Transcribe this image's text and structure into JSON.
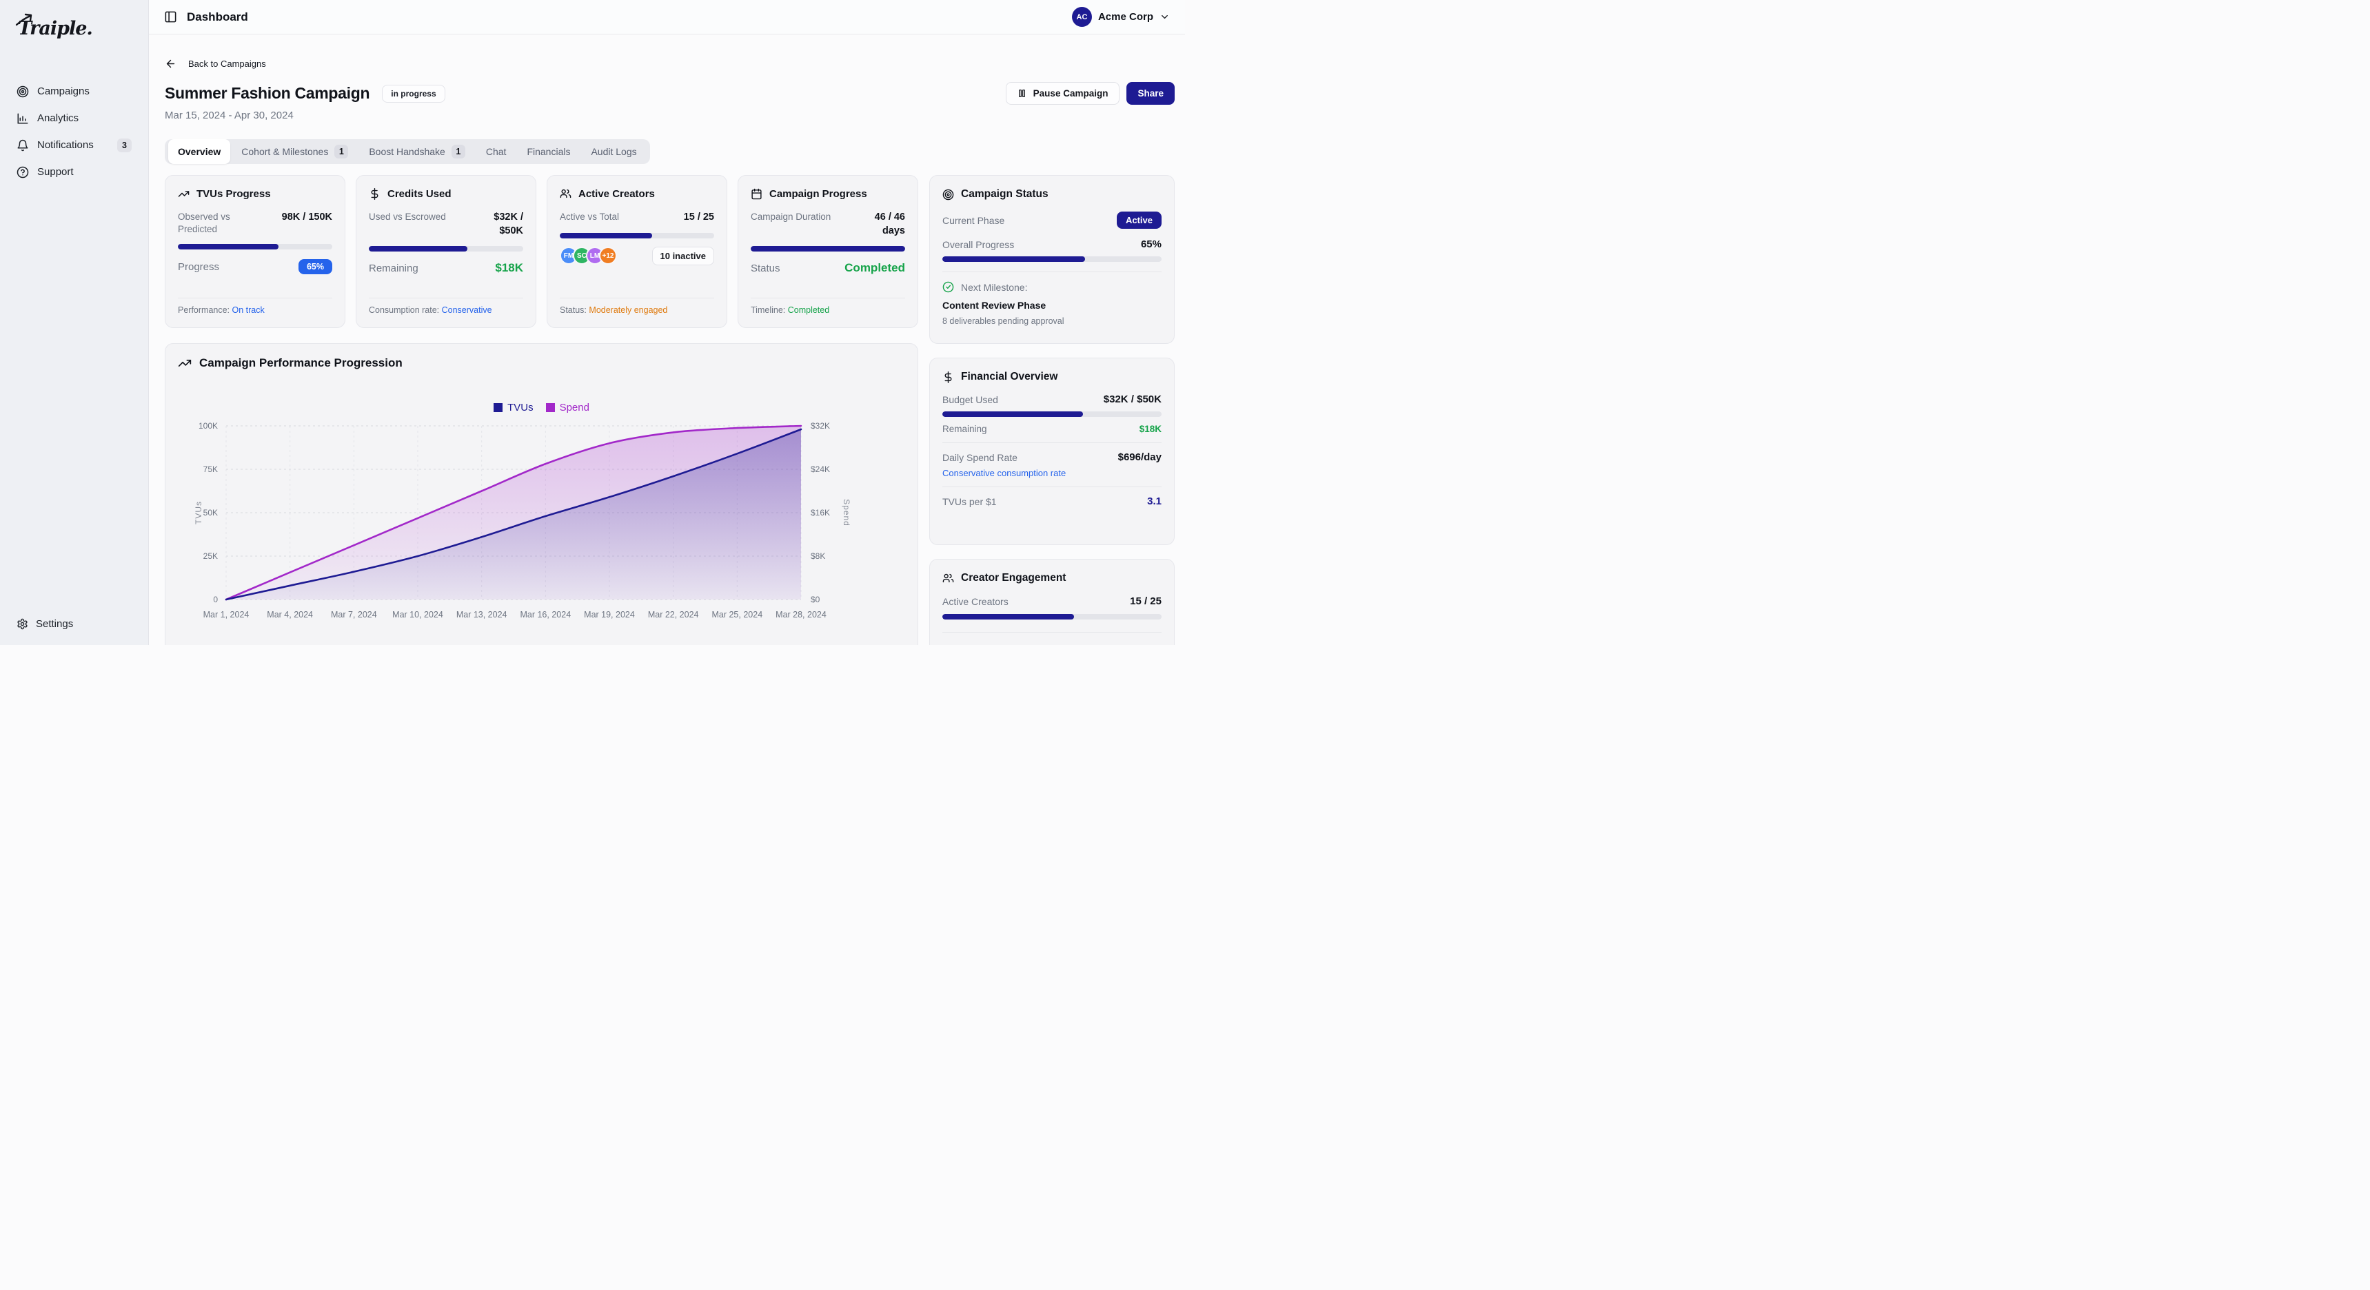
{
  "brand": {
    "logo_text": "Traiple."
  },
  "topbar": {
    "title": "Dashboard",
    "org_initials": "AC",
    "org_name": "Acme Corp"
  },
  "sidebar": {
    "items": [
      {
        "label": "Campaigns"
      },
      {
        "label": "Analytics"
      },
      {
        "label": "Notifications",
        "badge": "3"
      },
      {
        "label": "Support"
      }
    ],
    "settings_label": "Settings"
  },
  "page": {
    "back_label": "Back to Campaigns",
    "title": "Summer Fashion Campaign",
    "status_badge": "in progress",
    "date_range": "Mar 15, 2024 - Apr 30, 2024",
    "pause_button": "Pause Campaign",
    "share_button": "Share",
    "tabs": [
      {
        "label": "Overview"
      },
      {
        "label": "Cohort & Milestones",
        "badge": "1"
      },
      {
        "label": "Boost Handshake",
        "badge": "1"
      },
      {
        "label": "Chat"
      },
      {
        "label": "Financials"
      },
      {
        "label": "Audit Logs"
      }
    ]
  },
  "cards": {
    "tvus": {
      "title": "TVUs Progress",
      "metric_label": "Observed vs Predicted",
      "metric_value": "98K / 150K",
      "progress_pct": 65,
      "row2_label": "Progress",
      "row2_badge": "65%",
      "footer_label": "Performance:",
      "footer_value": "On track"
    },
    "credits": {
      "title": "Credits Used",
      "metric_label": "Used vs Escrowed",
      "metric_value": "$32K / $50K",
      "progress_pct": 64,
      "row2_label": "Remaining",
      "row2_value": "$18K",
      "footer_label": "Consumption rate:",
      "footer_value": "Conservative"
    },
    "creators": {
      "title": "Active Creators",
      "metric_label": "Active vs Total",
      "metric_value": "15 / 25",
      "progress_pct": 60,
      "avatars": [
        {
          "initials": "FM",
          "color": "#4b8df8"
        },
        {
          "initials": "SC",
          "color": "#2eb563"
        },
        {
          "initials": "LM",
          "color": "#b06cf0"
        },
        {
          "initials": "+12",
          "color": "#f07d22"
        }
      ],
      "inactive_badge": "10 inactive",
      "footer_label": "Status:",
      "footer_value": "Moderately engaged"
    },
    "duration": {
      "title": "Campaign Progress",
      "metric_label": "Campaign Duration",
      "metric_value": "46 / 46 days",
      "progress_pct": 100,
      "row2_label": "Status",
      "row2_value": "Completed",
      "footer_label": "Timeline:",
      "footer_value": "Completed"
    },
    "status": {
      "title": "Campaign Status",
      "phase_label": "Current Phase",
      "phase_badge": "Active",
      "progress_label": "Overall Progress",
      "progress_value": "65%",
      "progress_pct": 65,
      "milestone_label": "Next Milestone:",
      "milestone_title": "Content Review Phase",
      "milestone_note": "8 deliverables pending approval"
    },
    "financial": {
      "title": "Financial Overview",
      "budget_label": "Budget Used",
      "budget_value": "$32K / $50K",
      "progress_pct": 64,
      "remaining_label": "Remaining",
      "remaining_value": "$18K",
      "daily_label": "Daily Spend Rate",
      "daily_value": "$696/day",
      "daily_note": "Conservative consumption rate",
      "ratio_label": "TVUs per $1",
      "ratio_value": "3.1"
    },
    "engagement": {
      "title": "Creator Engagement",
      "metric_label": "Active Creators",
      "metric_value": "15 / 25",
      "progress_pct": 60
    }
  },
  "chart_data": {
    "type": "area",
    "title": "Campaign Performance Progression",
    "x": [
      "Mar 1, 2024",
      "Mar 4, 2024",
      "Mar 7, 2024",
      "Mar 10, 2024",
      "Mar 13, 2024",
      "Mar 16, 2024",
      "Mar 19, 2024",
      "Mar 22, 2024",
      "Mar 25, 2024",
      "Mar 28, 2024"
    ],
    "series": [
      {
        "name": "TVUs",
        "axis": "left",
        "color": "#1e1b93",
        "values": [
          0,
          8000,
          16000,
          25000,
          36000,
          48000,
          59000,
          71000,
          84000,
          98000
        ]
      },
      {
        "name": "Spend",
        "axis": "right",
        "color": "#a228c9",
        "values": [
          0,
          5000,
          10000,
          15000,
          20000,
          25000,
          28800,
          30800,
          31600,
          32000
        ]
      }
    ],
    "left_axis": {
      "label": "TVUs",
      "min": 0,
      "max": 100000,
      "ticks": [
        "0",
        "25K",
        "50K",
        "75K",
        "100K"
      ]
    },
    "right_axis": {
      "label": "Spend",
      "min": 0,
      "max": 32000,
      "ticks": [
        "$0",
        "$8K",
        "$16K",
        "$24K",
        "$32K"
      ]
    },
    "grid": "dashed",
    "legend_position": "top"
  }
}
